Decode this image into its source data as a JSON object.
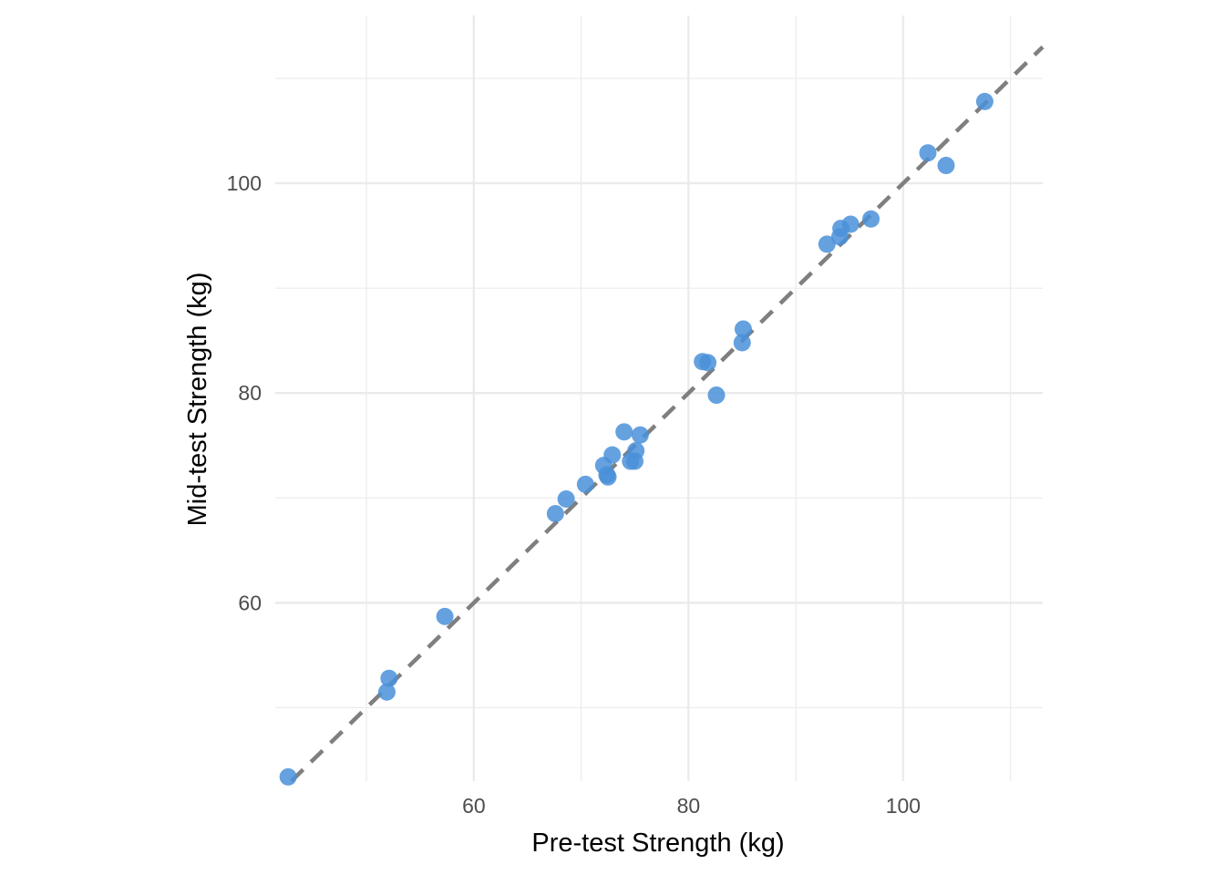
{
  "chart_data": {
    "type": "scatter",
    "title": "",
    "xlabel": "Pre-test Strength (kg)",
    "ylabel": "Mid-test Strength (kg)",
    "xlim": [
      41.5,
      113
    ],
    "ylim": [
      43,
      116
    ],
    "x_ticks": [
      60,
      80,
      100
    ],
    "y_ticks": [
      60,
      80,
      100
    ],
    "x_tick_labels": [
      "60",
      "80",
      "100"
    ],
    "y_tick_labels": [
      "60",
      "80",
      "100"
    ],
    "grid": true,
    "reference_line": {
      "slope": 1,
      "intercept": 0,
      "style": "dashed",
      "color": "#7f7f7f"
    },
    "point_color": "#4a90d9",
    "points": [
      {
        "x": 42.7,
        "y": 43.4
      },
      {
        "x": 51.9,
        "y": 51.5
      },
      {
        "x": 52.1,
        "y": 52.8
      },
      {
        "x": 57.3,
        "y": 58.7
      },
      {
        "x": 67.6,
        "y": 68.5
      },
      {
        "x": 68.6,
        "y": 69.9
      },
      {
        "x": 70.4,
        "y": 71.3
      },
      {
        "x": 72.1,
        "y": 73.1
      },
      {
        "x": 72.4,
        "y": 72.2
      },
      {
        "x": 72.5,
        "y": 72.0
      },
      {
        "x": 72.9,
        "y": 74.1
      },
      {
        "x": 74.0,
        "y": 76.3
      },
      {
        "x": 74.6,
        "y": 73.5
      },
      {
        "x": 75.0,
        "y": 73.5
      },
      {
        "x": 75.1,
        "y": 74.5
      },
      {
        "x": 75.5,
        "y": 76.0
      },
      {
        "x": 81.3,
        "y": 83.0
      },
      {
        "x": 81.8,
        "y": 82.9
      },
      {
        "x": 82.6,
        "y": 79.8
      },
      {
        "x": 85.0,
        "y": 84.8
      },
      {
        "x": 85.1,
        "y": 86.1
      },
      {
        "x": 92.9,
        "y": 94.2
      },
      {
        "x": 94.1,
        "y": 94.9
      },
      {
        "x": 94.2,
        "y": 95.7
      },
      {
        "x": 95.1,
        "y": 96.1
      },
      {
        "x": 97.0,
        "y": 96.6
      },
      {
        "x": 102.3,
        "y": 102.9
      },
      {
        "x": 104.0,
        "y": 101.7
      },
      {
        "x": 107.6,
        "y": 107.8
      }
    ]
  }
}
